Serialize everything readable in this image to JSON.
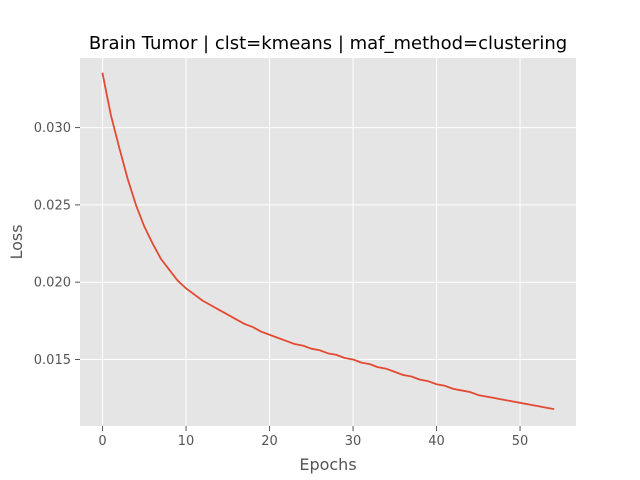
{
  "chart_data": {
    "type": "line",
    "title": "Brain Tumor | clst=kmeans | maf_method=clustering",
    "xlabel": "Epochs",
    "ylabel": "Loss",
    "xlim": [
      -2.7,
      56.7
    ],
    "ylim": [
      0.0107,
      0.0345
    ],
    "xticks": [
      0,
      10,
      20,
      30,
      40,
      50
    ],
    "xtick_labels": [
      "0",
      "10",
      "20",
      "30",
      "40",
      "50"
    ],
    "yticks": [
      0.015,
      0.02,
      0.025,
      0.03
    ],
    "ytick_labels": [
      "0.015",
      "0.020",
      "0.025",
      "0.030"
    ],
    "grid": true,
    "colors": {
      "background": "#e5e5e5",
      "grid": "#ffffff",
      "line": "#e24a33"
    },
    "series": [
      {
        "color": "#e24a33",
        "x": [
          0,
          1,
          2,
          3,
          4,
          5,
          6,
          7,
          8,
          9,
          10,
          11,
          12,
          13,
          14,
          15,
          16,
          17,
          18,
          19,
          20,
          21,
          22,
          23,
          24,
          25,
          26,
          27,
          28,
          29,
          30,
          31,
          32,
          33,
          34,
          35,
          36,
          37,
          38,
          39,
          40,
          41,
          42,
          43,
          44,
          45,
          46,
          47,
          48,
          49,
          50,
          51,
          52,
          53,
          54
        ],
        "values": [
          0.0335,
          0.0308,
          0.0287,
          0.0267,
          0.025,
          0.0236,
          0.0225,
          0.0215,
          0.0208,
          0.0201,
          0.0196,
          0.0192,
          0.0188,
          0.0185,
          0.0182,
          0.0179,
          0.0176,
          0.0173,
          0.0171,
          0.0168,
          0.0166,
          0.0164,
          0.0162,
          0.016,
          0.0159,
          0.0157,
          0.0156,
          0.0154,
          0.0153,
          0.0151,
          0.015,
          0.0148,
          0.0147,
          0.0145,
          0.0144,
          0.0142,
          0.014,
          0.0139,
          0.0137,
          0.0136,
          0.0134,
          0.0133,
          0.0131,
          0.013,
          0.0129,
          0.0127,
          0.0126,
          0.0125,
          0.0124,
          0.0123,
          0.0122,
          0.0121,
          0.012,
          0.0119,
          0.0118
        ]
      }
    ]
  }
}
